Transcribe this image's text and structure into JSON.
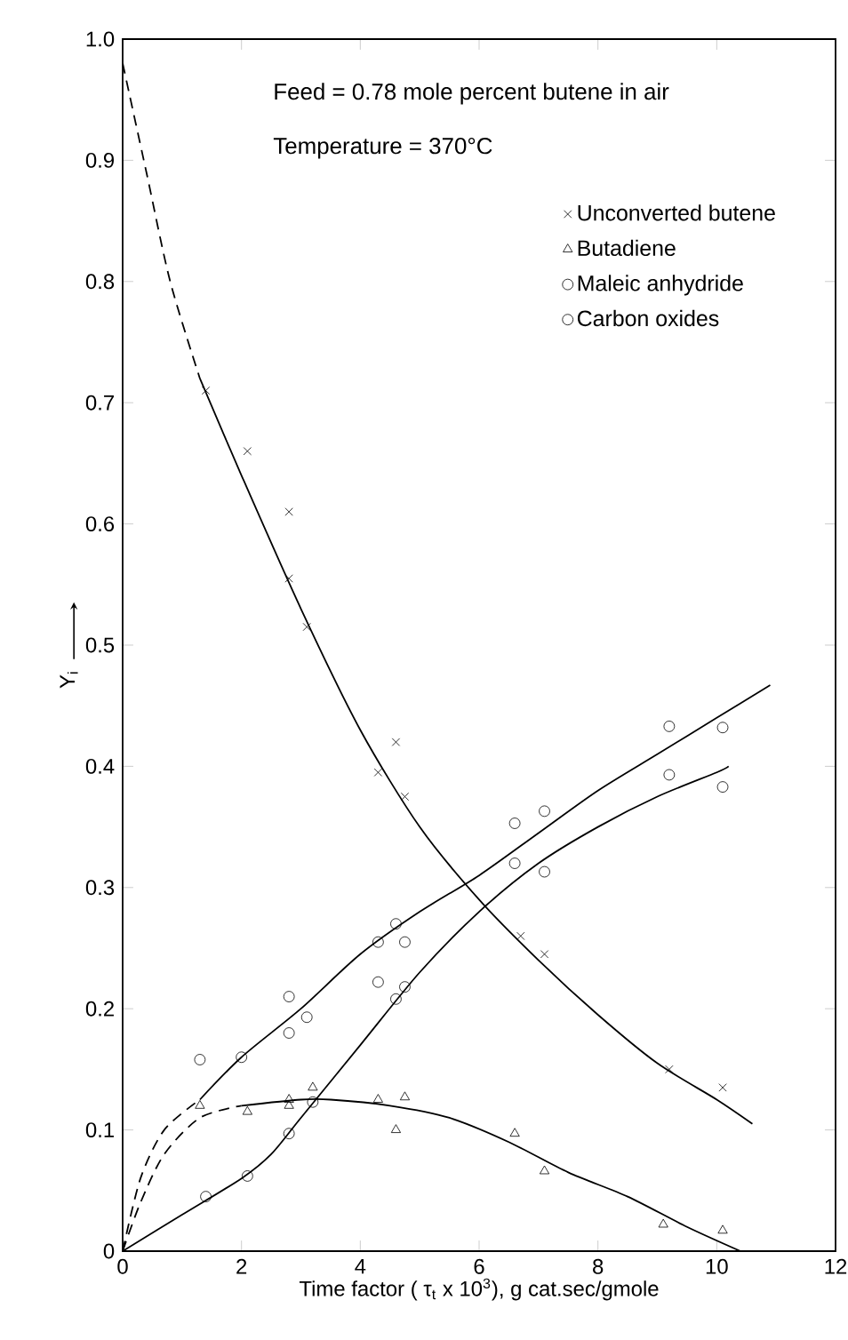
{
  "chart_data": {
    "type": "scatter",
    "xlabel": "Time factor ( τ$_{t}$ x 10$^{3}$), g cat.sec/gmole",
    "ylabel": "Y$_{i}$",
    "annotations": [
      "Feed = 0.78 mole percent butene in air",
      "Temperature = 370°C"
    ],
    "xlim": [
      0,
      12
    ],
    "ylim": [
      0,
      1.0
    ],
    "xticks": [
      0,
      2,
      4,
      6,
      8,
      10,
      12
    ],
    "yticks": [
      0,
      0.1,
      0.2,
      0.3,
      0.4,
      0.5,
      0.6,
      0.7,
      0.8,
      0.9,
      {
        "value": 1.0,
        "label": "1.0"
      }
    ],
    "grid": false,
    "legend": "top right",
    "series": [
      {
        "name": "Unconverted butene",
        "marker": "cross",
        "color": "#000000",
        "x": [
          1.4,
          2.1,
          2.8,
          2.8,
          3.1,
          4.3,
          4.6,
          4.75,
          6.7,
          7.1,
          9.2,
          10.1
        ],
        "values": [
          0.71,
          0.66,
          0.61,
          0.555,
          0.515,
          0.395,
          0.42,
          0.375,
          0.26,
          0.245,
          0.15,
          0.135
        ]
      },
      {
        "name": "Butadiene",
        "marker": "triangle",
        "color": "#000000",
        "x": [
          1.3,
          2.1,
          2.8,
          2.8,
          3.2,
          4.3,
          4.6,
          4.75,
          6.6,
          7.1,
          9.1,
          10.1
        ],
        "values": [
          0.12,
          0.115,
          0.125,
          0.12,
          0.135,
          0.125,
          0.1,
          0.127,
          0.097,
          0.066,
          0.022,
          0.017
        ]
      },
      {
        "name": "Maleic anhydride",
        "marker": "circle",
        "color": "#000000",
        "x": [
          1.4,
          2.1,
          2.8,
          3.2,
          4.3,
          4.6,
          4.75,
          6.6,
          7.1,
          9.2,
          10.1
        ],
        "values": [
          0.045,
          0.062,
          0.097,
          0.123,
          0.222,
          0.208,
          0.218,
          0.32,
          0.313,
          0.393,
          0.383
        ]
      },
      {
        "name": "Carbon oxides",
        "marker": "circle",
        "color": "#000000",
        "x": [
          1.3,
          2.0,
          2.8,
          2.8,
          3.1,
          4.3,
          4.6,
          4.75,
          6.6,
          7.1,
          9.2,
          10.1
        ],
        "values": [
          0.158,
          0.16,
          0.21,
          0.18,
          0.193,
          0.255,
          0.27,
          0.255,
          0.353,
          0.363,
          0.433,
          0.432
        ]
      },
      {
        "type": "line",
        "line_style": "dashed",
        "marker": "none",
        "color": "#000000",
        "x": [
          0,
          0.4,
          0.8,
          1.3
        ],
        "values": [
          0.98,
          0.89,
          0.8,
          0.72
        ]
      },
      {
        "type": "line",
        "line_style": "solid",
        "marker": "none",
        "color": "#000000",
        "x": [
          1.3,
          2,
          3,
          4,
          5,
          6,
          7,
          8,
          9,
          10,
          10.6
        ],
        "values": [
          0.72,
          0.64,
          0.53,
          0.43,
          0.35,
          0.29,
          0.24,
          0.195,
          0.155,
          0.125,
          0.105
        ]
      },
      {
        "type": "line",
        "line_style": "dashed",
        "marker": "none",
        "color": "#000000",
        "x": [
          0,
          0.3,
          0.7,
          1.3,
          2
        ],
        "values": [
          0,
          0.04,
          0.08,
          0.11,
          0.12
        ]
      },
      {
        "type": "line",
        "line_style": "solid",
        "marker": "none",
        "color": "#000000",
        "x": [
          2,
          3,
          3.5,
          4.5,
          5.5,
          6.5,
          7.5,
          8.5,
          9.5,
          10.4
        ],
        "values": [
          0.12,
          0.125,
          0.125,
          0.12,
          0.11,
          0.09,
          0.065,
          0.045,
          0.02,
          0
        ]
      },
      {
        "type": "line",
        "line_style": "solid",
        "marker": "none",
        "color": "#000000",
        "x": [
          0,
          1,
          2,
          2.5,
          3,
          4,
          5,
          6,
          7,
          8,
          9,
          10,
          10.2
        ],
        "values": [
          0,
          0.03,
          0.06,
          0.08,
          0.11,
          0.17,
          0.23,
          0.28,
          0.32,
          0.35,
          0.375,
          0.395,
          0.4
        ]
      },
      {
        "type": "line",
        "line_style": "dashed",
        "marker": "none",
        "color": "#000000",
        "x": [
          0,
          0.3,
          0.7,
          1.3
        ],
        "values": [
          0,
          0.06,
          0.1,
          0.125
        ]
      },
      {
        "type": "line",
        "line_style": "solid",
        "marker": "none",
        "color": "#000000",
        "x": [
          1.3,
          2,
          3,
          4,
          5,
          6,
          7,
          8,
          9,
          10,
          10.9
        ],
        "values": [
          0.125,
          0.16,
          0.2,
          0.245,
          0.28,
          0.31,
          0.345,
          0.38,
          0.41,
          0.44,
          0.467
        ]
      }
    ]
  }
}
